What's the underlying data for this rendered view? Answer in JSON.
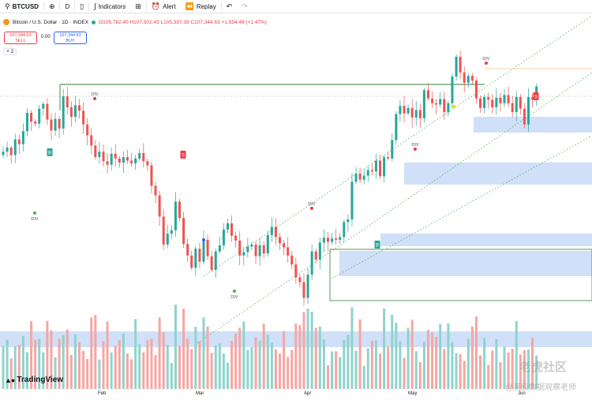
{
  "toolbar": {
    "symbol": "BTCUSD",
    "add_icon": "plus-circle-icon",
    "interval": "D",
    "indicators_label": "Indicators",
    "alert_label": "Alert",
    "replay_label": "Replay",
    "undo_icon": "undo-icon",
    "redo_icon": "redo-icon"
  },
  "legend": {
    "title": "Bitcoin / U.S. Dollar · 1D · INDEX",
    "ohlc": "O105,782.40 H107,502.43 L105,397.39 C107,344.63 +1,554.48 (+1.47%)"
  },
  "trade": {
    "sell_price": "107,344.63",
    "sell_label": "SELL",
    "spread": "0.00",
    "buy_price": "107,344.63",
    "buy_label": "BUY"
  },
  "collapse_label": "2",
  "branding": {
    "logo_text": "TradingView"
  },
  "watermark": {
    "line1": "老虎社区",
    "line2": "@美股数据观察老师"
  },
  "colors": {
    "up": "#26a69a",
    "down": "#ef5350",
    "vol_up": "#8fd3cc",
    "vol_down": "#f5a6a3",
    "zone": "#bcd3f5",
    "div_up": "#4caf50",
    "div_down": "#f23645"
  },
  "chart_data": {
    "type": "candlestick",
    "title": "",
    "x_labels": [
      "Feb",
      "Mar",
      "Apr",
      "May",
      "Jun"
    ],
    "price_scale": "hidden",
    "close_approx": [
      97800,
      98400,
      97300,
      99600,
      98900,
      100800,
      103500,
      102200,
      101900,
      104100,
      104800,
      102500,
      100900,
      102600,
      101200,
      105900,
      104300,
      102900,
      104600,
      103800,
      101800,
      100200,
      98700,
      97000,
      97800,
      96400,
      95900,
      97500,
      96800,
      96200,
      97000,
      96500,
      96100,
      96800,
      97600,
      96400,
      95800,
      92800,
      91400,
      88300,
      84200,
      85800,
      86300,
      90500,
      88100,
      84300,
      82600,
      80800,
      83600,
      81700,
      84900,
      82500,
      80500,
      83200,
      84100,
      86400,
      87300,
      85500,
      84800,
      82600,
      83100,
      83900,
      84200,
      82500,
      84100,
      82900,
      85600,
      86800,
      85300,
      84400,
      83800,
      82600,
      81300,
      79400,
      78700,
      76400,
      79800,
      83200,
      82000,
      84500,
      85200,
      84600,
      85100,
      84900,
      85300,
      87500,
      87900,
      93400,
      94600,
      93700,
      94300,
      95100,
      94900,
      96500,
      94200,
      97000,
      96800,
      99500,
      103300,
      104500,
      103400,
      104200,
      102800,
      103900,
      102700,
      106800,
      105600,
      104900,
      104700,
      105500,
      103600,
      104900,
      108800,
      111700,
      109400,
      107900,
      108900,
      108200,
      105600,
      104200,
      105800,
      105400,
      104300,
      105700,
      104900,
      106100,
      104900,
      103600,
      105800,
      104100,
      101800,
      105800,
      105400,
      107344.63
    ],
    "div_labels": [
      "DIV",
      "DIV",
      "DIV",
      "DIV",
      "DIV",
      "DIV"
    ],
    "signals": [
      "S",
      "B",
      "B",
      "S"
    ],
    "demand_supply_zones": 6
  }
}
